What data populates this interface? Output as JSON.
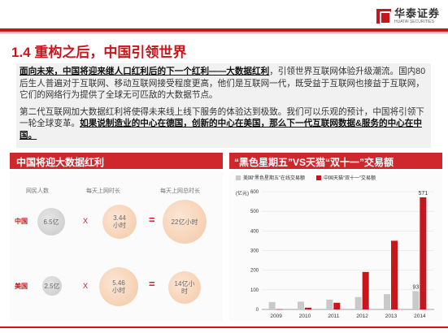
{
  "header": {
    "logo_cn": "华泰证券",
    "logo_en": "HUATAI SECURITIES"
  },
  "title": "1.4 重构之后，中国引领世界",
  "body": {
    "p1_bold": "面向未来，中国将迎来继人口红利后的下一个红利——大数据红利",
    "p1_rest": "，引领世界互联网体验升级潮流。国内80后生人普遍对于互联网、移动互联网接受程度更高，他们是互联网一代，既受益于互联网也接益于互联网，它们的网络行为提供了全球无可匹敌的大数据节点。",
    "p2_normal": "第二代互联网加大数据红利将使得未来线上线下服务的体验达到极致。我们可以乐观的预计，中国将引领下一轮全球变革。",
    "p2_bold": "如果说制造业的中心在德国，创新的中心在美国，那么下一代互联网数据&服务的中心在中国。"
  },
  "left_panel": {
    "title": "中国将迎大数据红利",
    "headers": [
      "网民人数",
      "每天上网时长",
      "每天上网总时长"
    ],
    "rows": [
      {
        "country": "中国",
        "users": "6.5亿",
        "hours": "3.44\n小时",
        "total": "22亿小时"
      },
      {
        "country": "美国",
        "users": "2.5亿",
        "hours": "5.46\n小时",
        "total": "14亿小\n时"
      }
    ],
    "ops": {
      "times": "X",
      "equals": "="
    }
  },
  "right_panel": {
    "title": "“黑色星期五”VS天猫“双十一”交易额"
  },
  "chart_data": {
    "type": "bar",
    "ylabel": "(亿元)",
    "ylim": [
      0,
      600
    ],
    "yticks": [
      "0",
      "100",
      "200",
      "300",
      "400",
      "500",
      "600"
    ],
    "categories": [
      "2009",
      "2010",
      "2011",
      "2012",
      "2013",
      "2014"
    ],
    "series": [
      {
        "name": "美国“黑色星期五”在线交易额",
        "color": "#c9c9c9",
        "values": [
          38,
          40,
          50,
          63,
          78,
          93
        ]
      },
      {
        "name": "中国天猫“双十一”交易额",
        "color": "#c8161d",
        "values": [
          1,
          9,
          34,
          191,
          350,
          571
        ]
      }
    ],
    "data_labels": {
      "1-5": "571",
      "0-5": "93"
    }
  }
}
